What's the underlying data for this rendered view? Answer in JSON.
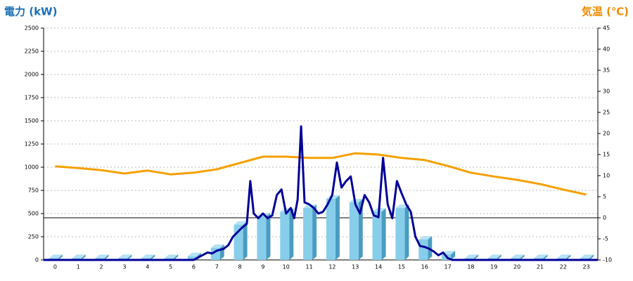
{
  "chart_data": {
    "type": "bar",
    "y_label": "電力 (kW)",
    "y2_label": "気温 (℃)",
    "categories": [
      "0",
      "1",
      "2",
      "3",
      "4",
      "5",
      "6",
      "7",
      "8",
      "9",
      "10",
      "11",
      "12",
      "13",
      "14",
      "15",
      "16",
      "17",
      "18",
      "19",
      "20",
      "21",
      "22",
      "23"
    ],
    "ylim": [
      0,
      2500
    ],
    "yticks": [
      0,
      250,
      500,
      750,
      1000,
      1250,
      1500,
      1750,
      2000,
      2250,
      2500
    ],
    "y2lim": [
      -10,
      45
    ],
    "y2ticks": [
      -10,
      -5,
      0,
      5,
      10,
      15,
      20,
      25,
      30,
      35,
      40,
      45
    ],
    "xlim": [
      -0.5,
      23.5
    ],
    "grid": true,
    "y2_zero_line": true,
    "series": [
      {
        "type": "bar",
        "color": "#87ceeb",
        "values": [
          20,
          20,
          20,
          20,
          20,
          20,
          40,
          130,
          380,
          470,
          520,
          560,
          660,
          620,
          520,
          560,
          220,
          60,
          20,
          20,
          20,
          20,
          20,
          20
        ]
      },
      {
        "type": "line",
        "axis": "y2",
        "color": "#f5a000",
        "values": [
          12.2,
          11.8,
          11.3,
          10.5,
          11.2,
          10.3,
          10.7,
          11.5,
          13,
          14.5,
          14.5,
          14.2,
          14.2,
          15.3,
          15,
          14.2,
          13.7,
          12.3,
          10.7,
          9.8,
          9,
          8,
          6.7,
          5.5
        ]
      },
      {
        "type": "line",
        "color": "#000099",
        "x": [
          -0.5,
          6.0,
          6.3,
          6.6,
          6.8,
          7.0,
          7.3,
          7.5,
          7.7,
          7.9,
          8.1,
          8.3,
          8.45,
          8.6,
          8.8,
          9.0,
          9.2,
          9.4,
          9.6,
          9.8,
          10.0,
          10.2,
          10.35,
          10.5,
          10.65,
          10.8,
          11.0,
          11.2,
          11.4,
          11.6,
          11.8,
          12.0,
          12.2,
          12.4,
          12.6,
          12.8,
          13.0,
          13.2,
          13.4,
          13.6,
          13.8,
          14.0,
          14.2,
          14.4,
          14.6,
          14.8,
          15.0,
          15.2,
          15.4,
          15.6,
          15.8,
          16.0,
          16.2,
          16.4,
          16.6,
          16.8,
          17.0,
          17.2,
          23.5
        ],
        "values": [
          0,
          0,
          40,
          80,
          70,
          100,
          120,
          160,
          250,
          300,
          350,
          390,
          850,
          500,
          450,
          500,
          450,
          480,
          700,
          760,
          500,
          560,
          450,
          650,
          1440,
          620,
          600,
          560,
          500,
          520,
          600,
          700,
          1050,
          780,
          850,
          900,
          600,
          500,
          700,
          620,
          480,
          460,
          1100,
          600,
          450,
          850,
          720,
          600,
          520,
          250,
          150,
          140,
          120,
          90,
          50,
          80,
          20,
          0,
          0
        ]
      }
    ]
  }
}
